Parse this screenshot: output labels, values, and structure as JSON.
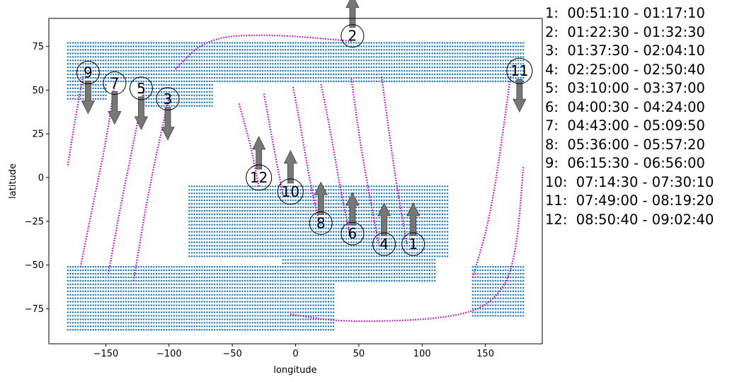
{
  "chart_data": {
    "type": "scatter",
    "title": "",
    "xlabel": "longitude",
    "ylabel": "latitude",
    "xlim": [
      -195,
      195
    ],
    "ylim": [
      -95,
      91
    ],
    "xticks": [
      -150,
      -100,
      -50,
      0,
      50,
      100,
      150
    ],
    "yticks": [
      -75,
      -50,
      -25,
      0,
      25,
      50,
      75
    ],
    "grid": false,
    "colors": {
      "land": "#1f77b4",
      "track": "#bf00bf",
      "arrow": "#777777"
    },
    "land_regions": [
      {
        "lat_min": 55,
        "lat_max": 77,
        "lon_min": -180,
        "lon_max": 180
      },
      {
        "lat_min": 40,
        "lat_max": 55,
        "lon_min": -120,
        "lon_max": -65
      },
      {
        "lat_min": 45,
        "lat_max": 55,
        "lon_min": -180,
        "lon_max": -150
      },
      {
        "lat_min": -45,
        "lat_max": -5,
        "lon_min": -85,
        "lon_max": 120
      },
      {
        "lat_min": -60,
        "lat_max": -45,
        "lon_min": -10,
        "lon_max": 110
      },
      {
        "lat_min": -87,
        "lat_max": -50,
        "lon_min": -180,
        "lon_max": 30
      },
      {
        "lat_min": -80,
        "lat_max": -50,
        "lon_min": 140,
        "lon_max": 180
      }
    ],
    "tracks": [
      {
        "name": "1",
        "points": [
          [
            88,
            -38
          ],
          [
            80,
            -5
          ],
          [
            74,
            25
          ],
          [
            68,
            58
          ]
        ]
      },
      {
        "name": "2",
        "points": [
          [
            -95,
            62
          ],
          [
            -70,
            80
          ],
          [
            -20,
            82
          ],
          [
            45,
            78
          ]
        ]
      },
      {
        "name": "3",
        "points": [
          [
            -128,
            -59
          ],
          [
            -118,
            -15
          ],
          [
            -108,
            20
          ],
          [
            -100,
            46
          ]
        ]
      },
      {
        "name": "4",
        "points": [
          [
            66,
            -39
          ],
          [
            57,
            -5
          ],
          [
            50,
            25
          ],
          [
            44,
            57
          ]
        ]
      },
      {
        "name": "5",
        "points": [
          [
            -148,
            -55
          ],
          [
            -138,
            -15
          ],
          [
            -128,
            20
          ],
          [
            -120,
            50
          ]
        ]
      },
      {
        "name": "6",
        "points": [
          [
            43,
            -33
          ],
          [
            35,
            -5
          ],
          [
            28,
            25
          ],
          [
            20,
            54
          ]
        ]
      },
      {
        "name": "7",
        "points": [
          [
            -170,
            -51
          ],
          [
            -160,
            -15
          ],
          [
            -150,
            20
          ],
          [
            -143,
            53
          ]
        ]
      },
      {
        "name": "8",
        "points": [
          [
            19,
            -26
          ],
          [
            12,
            -5
          ],
          [
            5,
            25
          ],
          [
            -2,
            52
          ]
        ]
      },
      {
        "name": "9",
        "points": [
          [
            -180,
            7
          ],
          [
            -175,
            30
          ],
          [
            -168,
            58
          ]
        ]
      },
      {
        "name": "10",
        "points": [
          [
            -10,
            -10
          ],
          [
            -18,
            20
          ],
          [
            -25,
            48
          ]
        ]
      },
      {
        "name": "11",
        "points": [
          [
            140,
            -57
          ],
          [
            155,
            -20
          ],
          [
            170,
            58
          ]
        ]
      },
      {
        "name": "11b",
        "points": [
          [
            180,
            6
          ],
          [
            175,
            -40
          ],
          [
            165,
            -65
          ],
          [
            135,
            -80
          ],
          [
            40,
            -83
          ],
          [
            -5,
            -78
          ]
        ]
      },
      {
        "name": "12",
        "points": [
          [
            -29,
            -5
          ],
          [
            -36,
            20
          ],
          [
            -45,
            43
          ]
        ]
      }
    ],
    "markers": [
      {
        "label": "1",
        "lon": 93,
        "lat": -38,
        "dir": "up"
      },
      {
        "label": "2",
        "lon": 45,
        "lat": 81,
        "dir": "up"
      },
      {
        "label": "3",
        "lon": -101,
        "lat": 45,
        "dir": "down"
      },
      {
        "label": "4",
        "lon": 70,
        "lat": -38,
        "dir": "up"
      },
      {
        "label": "5",
        "lon": -122,
        "lat": 51,
        "dir": "down"
      },
      {
        "label": "6",
        "lon": 45,
        "lat": -32,
        "dir": "up"
      },
      {
        "label": "7",
        "lon": -143,
        "lat": 54,
        "dir": "down"
      },
      {
        "label": "8",
        "lon": 20,
        "lat": -26,
        "dir": "up"
      },
      {
        "label": "9",
        "lon": -164,
        "lat": 60,
        "dir": "down"
      },
      {
        "label": "10",
        "lon": -4,
        "lat": -8,
        "dir": "up"
      },
      {
        "label": "11",
        "lon": 177,
        "lat": 61,
        "dir": "down"
      },
      {
        "label": "12",
        "lon": -29,
        "lat": 0,
        "dir": "up"
      }
    ]
  },
  "legend": [
    "1:  00:51:10 - 01:17:10",
    "2:  01:22:30 - 01:32:30",
    "3:  01:37:30 - 02:04:10",
    "4:  02:25:00 - 02:50:40",
    "5:  03:10:00 - 03:37:00",
    "6:  04:00:30 - 04:24:00",
    "7:  04:43:00 - 05:09:50",
    "8:  05:36:00 - 05:57:20",
    "9:  06:15:30 - 06:56:00",
    "10:  07:14:30 - 07:30:10",
    "11:  07:49:00 - 08:19:20",
    "12:  08:50:40 - 09:02:40"
  ]
}
